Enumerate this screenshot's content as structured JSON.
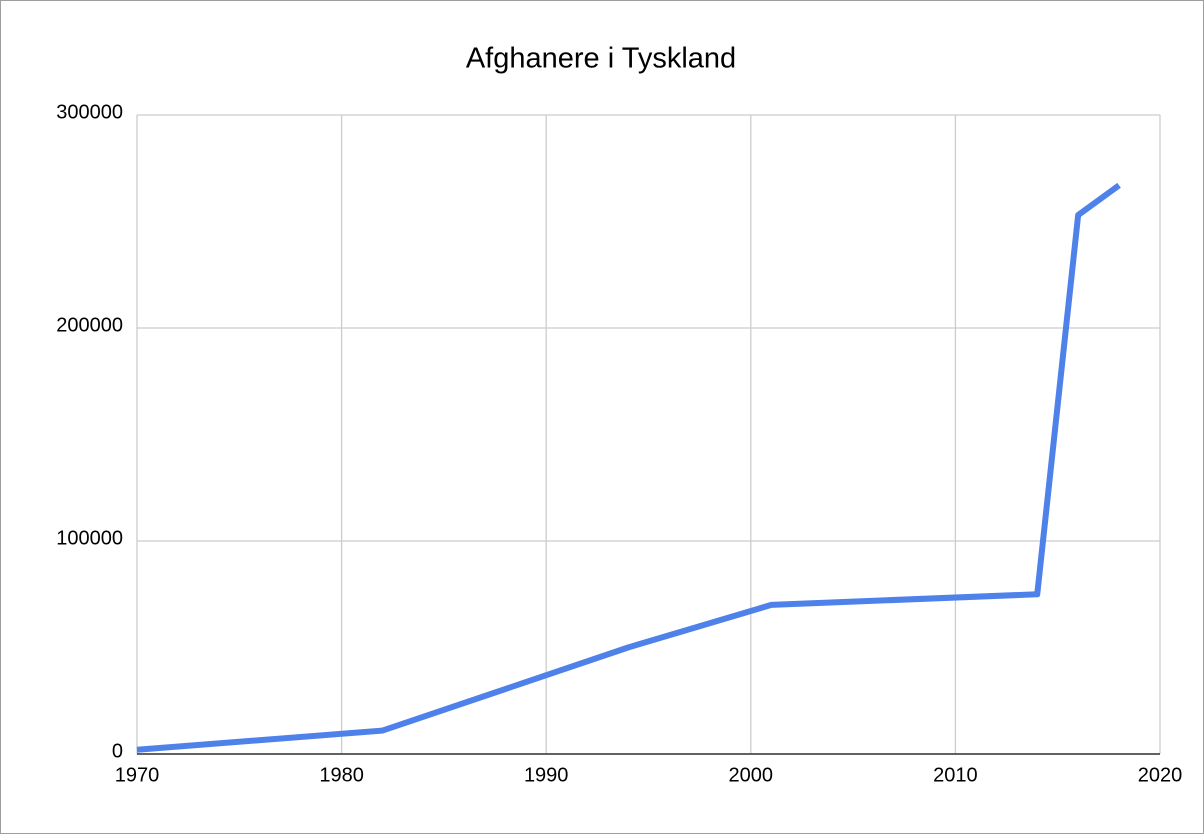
{
  "chart_data": {
    "type": "line",
    "title": "Afghanere i Tyskland",
    "x": [
      1970,
      1982,
      1994,
      2001,
      2014,
      2016,
      2018
    ],
    "series": [
      {
        "name": "Afghanere",
        "color": "#4f81eb",
        "values": [
          2000,
          11000,
          50000,
          70000,
          75000,
          253000,
          267000
        ]
      }
    ],
    "xlim": [
      1970,
      2020
    ],
    "xticks": [
      1970,
      1980,
      1990,
      2000,
      2010,
      2020
    ],
    "ylim": [
      0,
      300000
    ],
    "yticks": [
      0,
      100000,
      200000,
      300000
    ],
    "grid": true
  }
}
